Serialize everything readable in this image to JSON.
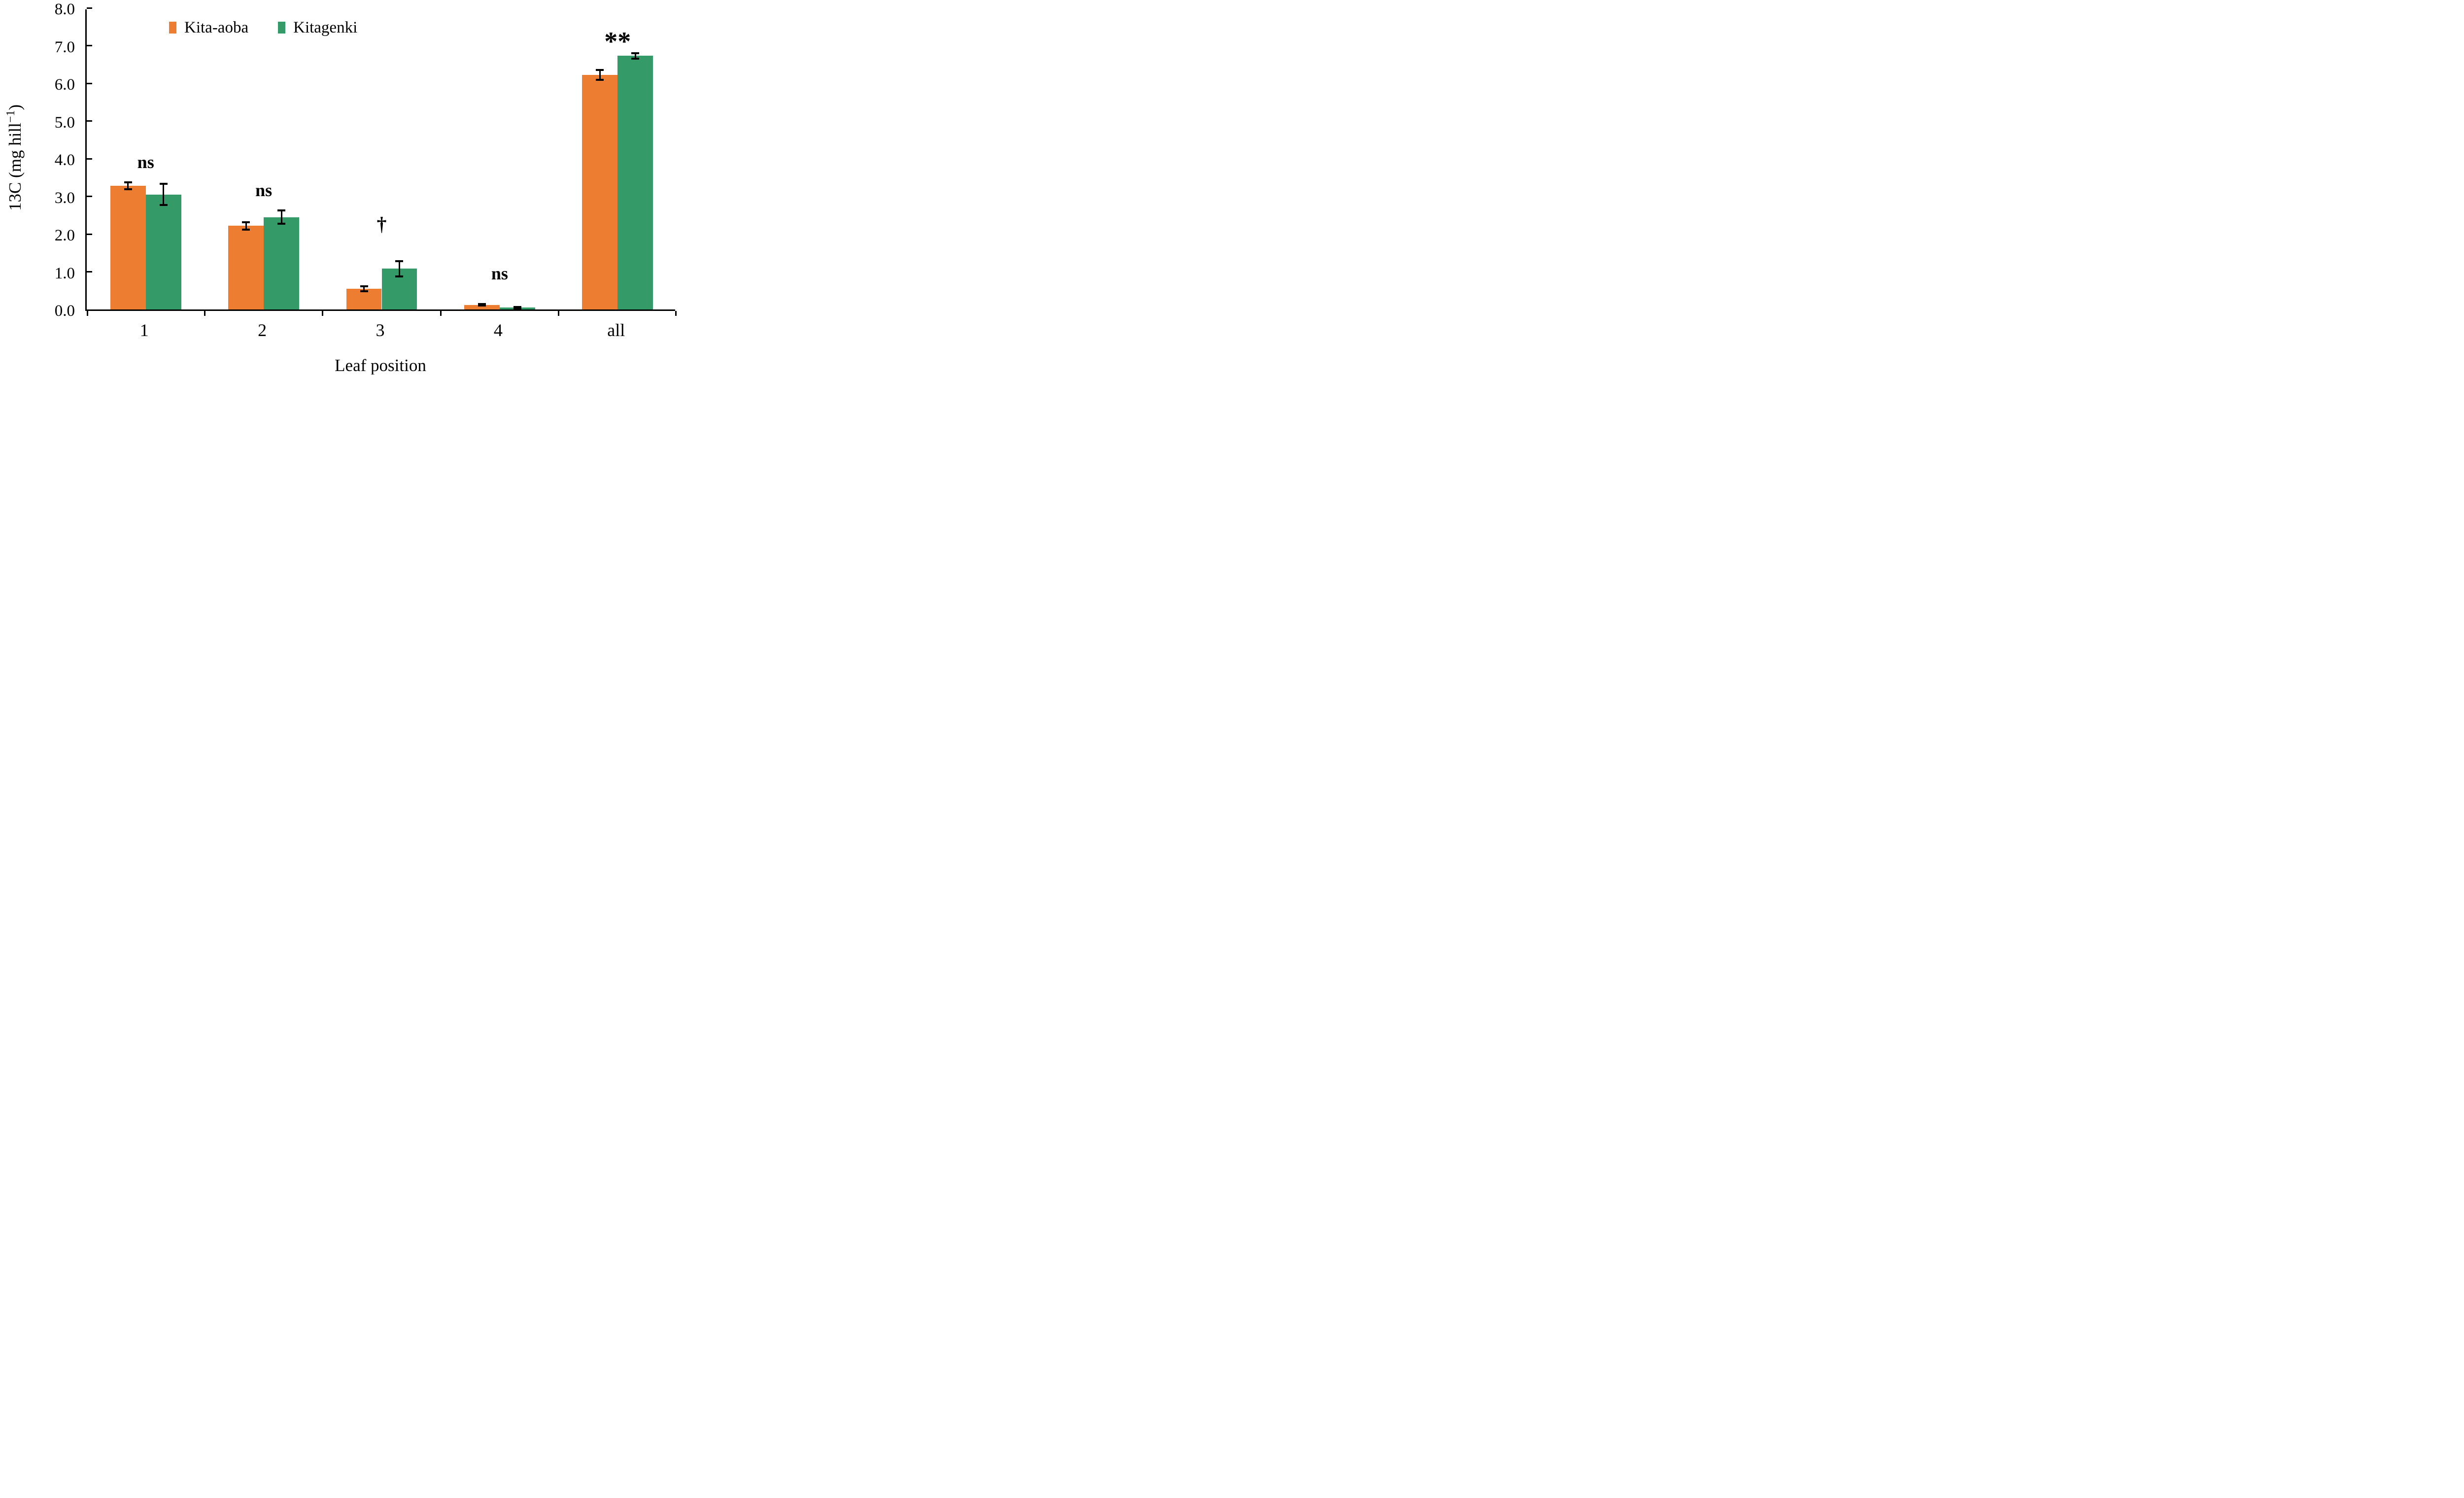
{
  "chart_data": {
    "type": "bar",
    "title": "",
    "xlabel": "Leaf position",
    "ylabel_prefix": "13C (mg hill",
    "ylabel_sup": "−1",
    "ylabel_suffix": ")",
    "categories": [
      "1",
      "2",
      "3",
      "4",
      "all"
    ],
    "series": [
      {
        "name": "Kita-aoba",
        "color": "#ED7D31",
        "values": [
          3.28,
          2.22,
          0.55,
          0.12,
          6.22
        ],
        "errors": [
          0.09,
          0.1,
          0.07,
          0.02,
          0.13
        ]
      },
      {
        "name": "Kitagenki",
        "color": "#349A68",
        "values": [
          3.05,
          2.45,
          1.08,
          0.05,
          6.73
        ],
        "errors": [
          0.28,
          0.18,
          0.2,
          0.02,
          0.07
        ]
      }
    ],
    "annotations": [
      {
        "category_index": 0,
        "label": "ns",
        "y": 3.95
      },
      {
        "category_index": 1,
        "label": "ns",
        "y": 3.2
      },
      {
        "category_index": 2,
        "label": "†",
        "y": 2.3
      },
      {
        "category_index": 3,
        "label": "ns",
        "y": 1.0
      },
      {
        "category_index": 4,
        "label": "**",
        "y": 7.15
      }
    ],
    "ylim": [
      0,
      8
    ],
    "ytick_step": 1,
    "yticks": [
      "0.0",
      "1.0",
      "2.0",
      "3.0",
      "4.0",
      "5.0",
      "6.0",
      "7.0",
      "8.0"
    ],
    "grid": false,
    "legend_position": "top-left-of-center",
    "error_bar_color": "#000000",
    "axis_color": "#000000"
  }
}
